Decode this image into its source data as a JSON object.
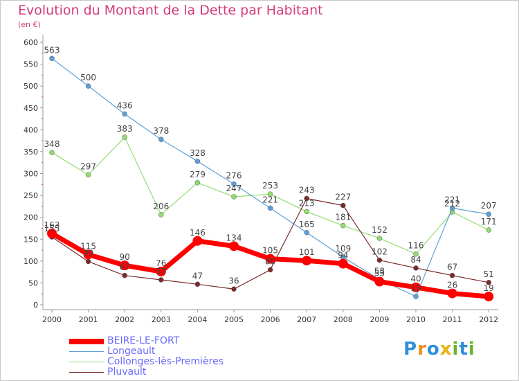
{
  "header": {
    "title": "Evolution du Montant de la Dette par Habitant",
    "subtitle": "(en €)"
  },
  "chart_data": {
    "type": "line",
    "x": [
      "2000",
      "2001",
      "2002",
      "2003",
      "2004",
      "2005",
      "2006",
      "2007",
      "2008",
      "2009",
      "2010",
      "2011",
      "2012"
    ],
    "y_ticks": [
      "0",
      "50",
      "100",
      "150",
      "200",
      "250",
      "300",
      "350",
      "400",
      "450",
      "500",
      "550",
      "600"
    ],
    "ylim": [
      0,
      600
    ],
    "grid": false,
    "legend_position": "bottom-left",
    "series": [
      {
        "name": "BEIRE-LE-FORT",
        "color": "#ff0000",
        "values": [
          163,
          115,
          90,
          76,
          146,
          134,
          105,
          101,
          94,
          53,
          40,
          26,
          19
        ],
        "labels": [
          "163",
          "115",
          "90",
          "76",
          "146",
          "134",
          "105",
          "101",
          "94",
          "53",
          "40",
          "26",
          "19"
        ]
      },
      {
        "name": "Longeault",
        "color": "#5f9fd7",
        "values": [
          563,
          500,
          436,
          378,
          328,
          276,
          221,
          165,
          109,
          58,
          19,
          221,
          207
        ],
        "labels": [
          "563",
          "500",
          "436",
          "378",
          "328",
          "276",
          "221",
          "165",
          "109",
          "58",
          "19",
          "221",
          "207"
        ]
      },
      {
        "name": "Collonges-lès-Premières",
        "color": "#91dd6f",
        "values": [
          348,
          297,
          383,
          206,
          279,
          247,
          253,
          213,
          181,
          152,
          116,
          212,
          171
        ],
        "labels": [
          "348",
          "297",
          "383",
          "206",
          "279",
          "247",
          "253",
          "213",
          "181",
          "152",
          "116",
          "212",
          "171"
        ]
      },
      {
        "name": "Pluvault",
        "color": "#7a2a2a",
        "values": [
          155,
          99,
          67,
          57,
          47,
          36,
          80,
          243,
          227,
          102,
          84,
          67,
          51
        ],
        "labels": [
          "155",
          "99",
          "67",
          "57",
          "47",
          "36",
          "80",
          "243",
          "227",
          "102",
          "84",
          "67",
          "51"
        ]
      }
    ]
  },
  "logo": {
    "letters": [
      "P",
      "r",
      "o",
      "x",
      "i",
      "t",
      "i"
    ],
    "colors": [
      "#2f8fd8",
      "#f28c1e",
      "#2f8fd8",
      "#e8b31a",
      "#6ab42d",
      "#2f8fd8",
      "#6ab42d"
    ]
  }
}
